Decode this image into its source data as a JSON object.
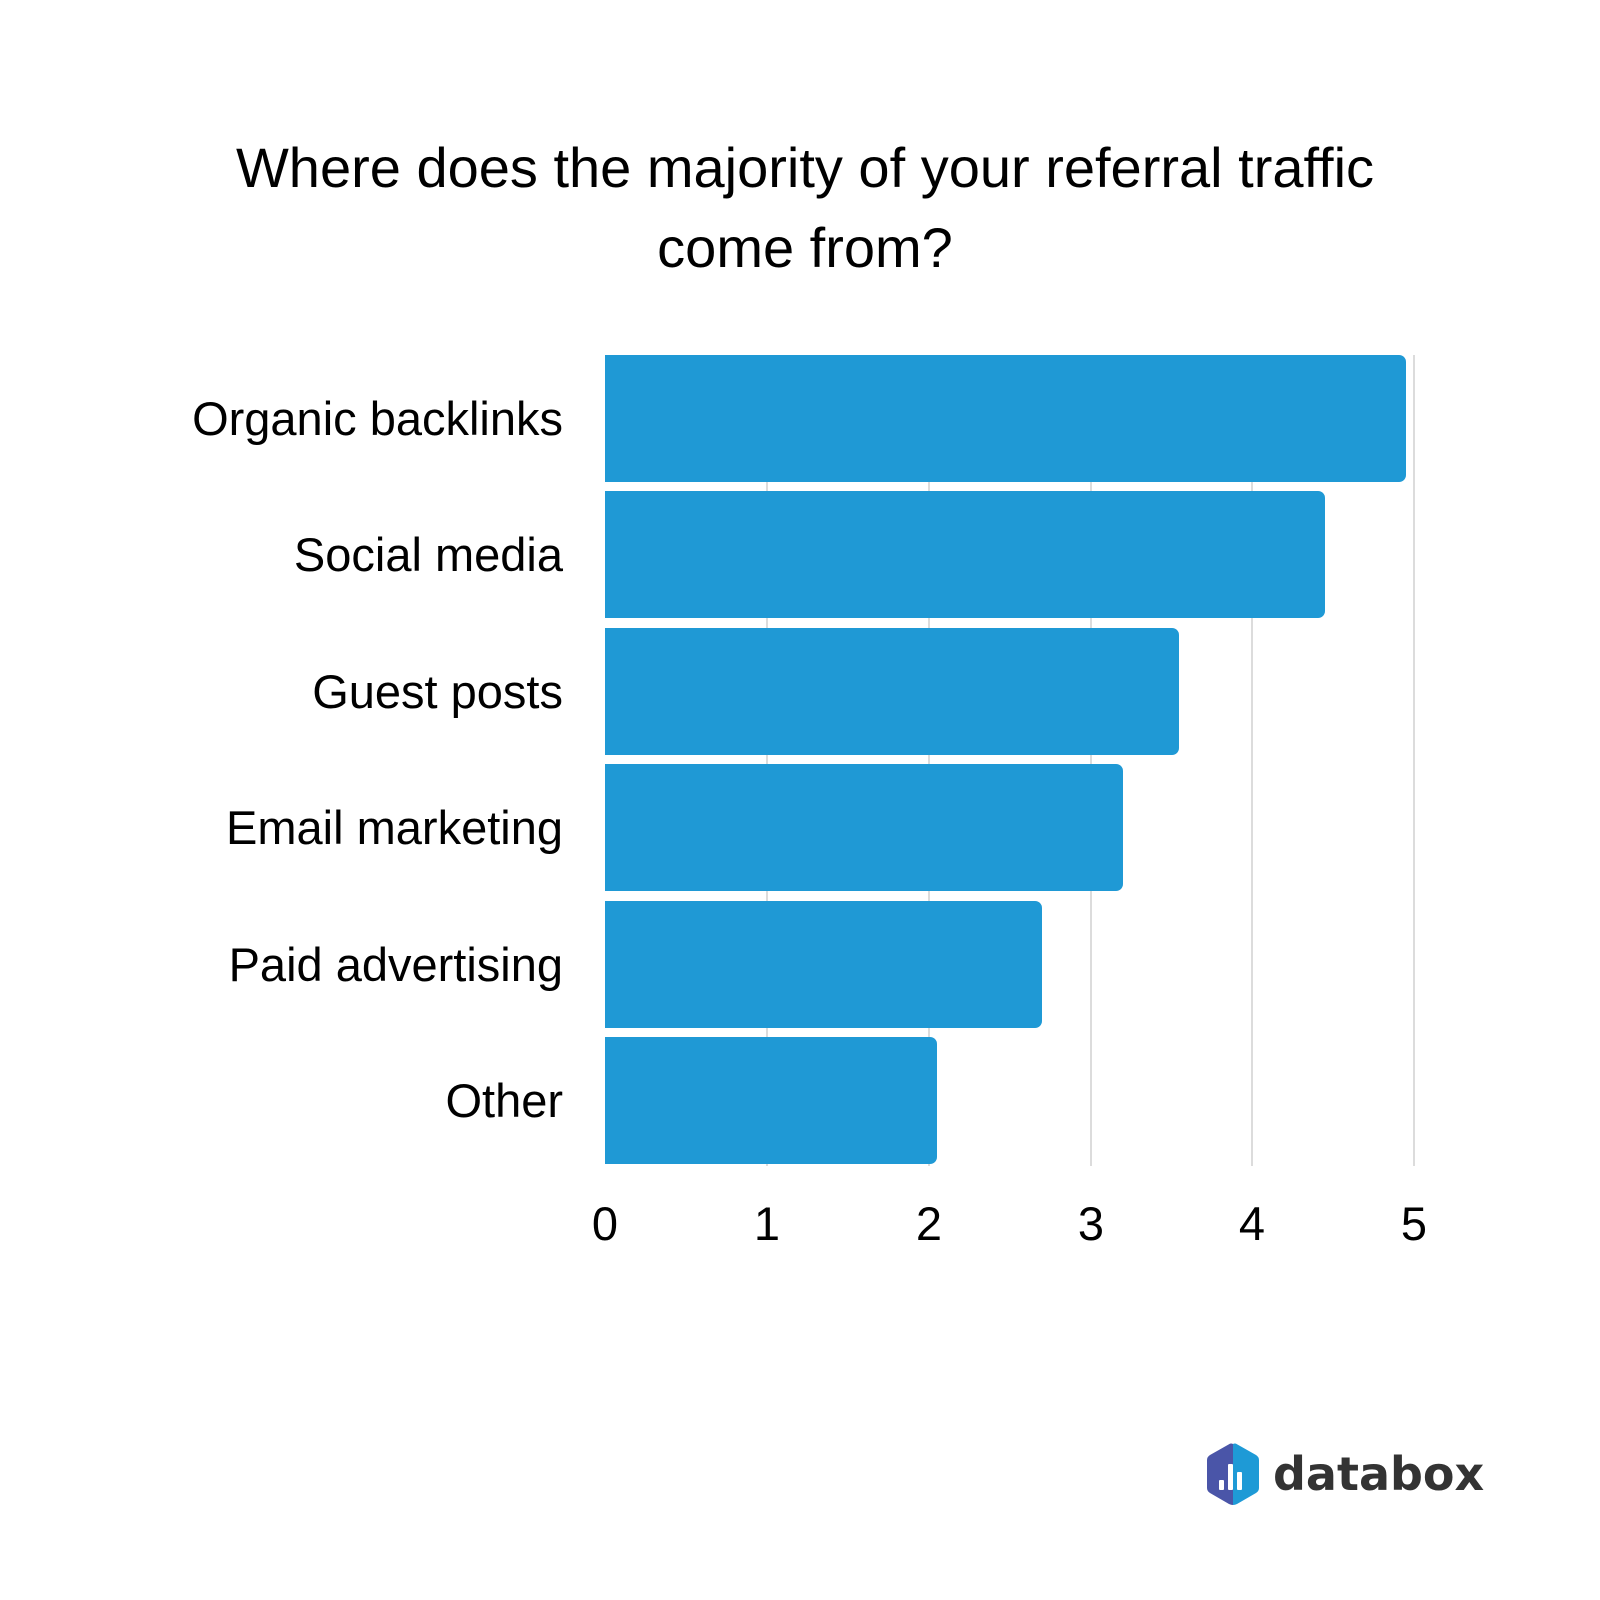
{
  "title": {
    "line1": "Where does the majority of your referral traffic",
    "line2": "come from?"
  },
  "colors": {
    "bar": "#1f99d5",
    "grid": "#dcdcdc",
    "logo_left": "#4a55a8",
    "logo_right": "#1e9ad6",
    "logo_text": "#333333"
  },
  "chart_data": {
    "type": "bar",
    "orientation": "horizontal",
    "title": "Where does the majority of your referral traffic come from?",
    "categories": [
      "Organic backlinks",
      "Social media",
      "Guest posts",
      "Email marketing",
      "Paid advertising",
      "Other"
    ],
    "values": [
      4.95,
      4.45,
      3.55,
      3.2,
      2.7,
      2.05
    ],
    "xlabel": "",
    "ylabel": "",
    "xlim": [
      0,
      5
    ],
    "xticks": [
      "0",
      "1",
      "2",
      "3",
      "4",
      "5"
    ],
    "grid": "vertical",
    "legend": "none"
  },
  "logo": {
    "icon": "databox-hexagon-icon",
    "text": "databox"
  }
}
